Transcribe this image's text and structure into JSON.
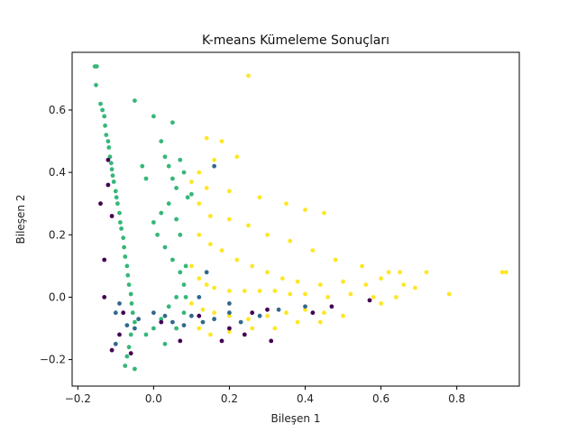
{
  "chart_data": {
    "type": "scatter",
    "title": "K-means Kümeleme Sonuçları",
    "xlabel": "Bileşen 1",
    "ylabel": "Bileşen 2",
    "xlim": [
      -0.215,
      0.965
    ],
    "ylim": [
      -0.285,
      0.785
    ],
    "xticks": [
      -0.2,
      0.0,
      0.2,
      0.4,
      0.6,
      0.8
    ],
    "yticks": [
      -0.2,
      0.0,
      0.2,
      0.4,
      0.6
    ],
    "grid": false,
    "legend": "none",
    "colors": {
      "cluster_green": "#35b779",
      "cluster_yellow": "#fde725",
      "cluster_purple": "#440154",
      "cluster_blue": "#31688e"
    },
    "series": [
      {
        "color_key": "cluster_green",
        "points": [
          [
            -0.15,
            0.74
          ],
          [
            -0.155,
            0.74
          ],
          [
            -0.152,
            0.68
          ],
          [
            -0.14,
            0.62
          ],
          [
            -0.135,
            0.6
          ],
          [
            -0.13,
            0.58
          ],
          [
            -0.128,
            0.55
          ],
          [
            -0.125,
            0.52
          ],
          [
            -0.12,
            0.5
          ],
          [
            -0.118,
            0.48
          ],
          [
            -0.115,
            0.45
          ],
          [
            -0.112,
            0.43
          ],
          [
            -0.11,
            0.41
          ],
          [
            -0.108,
            0.39
          ],
          [
            -0.105,
            0.37
          ],
          [
            -0.1,
            0.34
          ],
          [
            -0.098,
            0.32
          ],
          [
            -0.095,
            0.3
          ],
          [
            -0.09,
            0.27
          ],
          [
            -0.088,
            0.24
          ],
          [
            -0.085,
            0.22
          ],
          [
            -0.08,
            0.19
          ],
          [
            -0.078,
            0.16
          ],
          [
            -0.075,
            0.13
          ],
          [
            -0.07,
            0.1
          ],
          [
            -0.068,
            0.07
          ],
          [
            -0.065,
            0.04
          ],
          [
            -0.06,
            0.01
          ],
          [
            -0.058,
            -0.02
          ],
          [
            -0.055,
            -0.05
          ],
          [
            -0.05,
            -0.08
          ],
          [
            -0.06,
            -0.12
          ],
          [
            -0.065,
            -0.16
          ],
          [
            -0.07,
            -0.19
          ],
          [
            -0.075,
            -0.22
          ],
          [
            -0.05,
            -0.23
          ],
          [
            0.05,
            0.56
          ],
          [
            0.0,
            0.58
          ],
          [
            -0.05,
            0.63
          ],
          [
            0.02,
            0.5
          ],
          [
            0.03,
            0.45
          ],
          [
            0.04,
            0.42
          ],
          [
            0.05,
            0.38
          ],
          [
            0.06,
            0.35
          ],
          [
            0.04,
            0.3
          ],
          [
            0.02,
            0.27
          ],
          [
            0.0,
            0.24
          ],
          [
            0.01,
            0.2
          ],
          [
            0.03,
            0.16
          ],
          [
            0.05,
            0.12
          ],
          [
            0.07,
            0.08
          ],
          [
            0.08,
            0.04
          ],
          [
            0.06,
            0.0
          ],
          [
            0.04,
            -0.03
          ],
          [
            0.02,
            -0.07
          ],
          [
            0.0,
            -0.1
          ],
          [
            -0.02,
            -0.12
          ],
          [
            0.03,
            -0.15
          ],
          [
            0.06,
            -0.1
          ],
          [
            0.08,
            -0.05
          ],
          [
            0.085,
            0.0
          ],
          [
            0.085,
            0.1
          ],
          [
            0.07,
            0.2
          ],
          [
            0.06,
            0.25
          ],
          [
            -0.02,
            0.38
          ],
          [
            -0.03,
            0.42
          ],
          [
            0.07,
            0.44
          ],
          [
            0.08,
            0.4
          ],
          [
            0.09,
            0.32
          ],
          [
            0.1,
            0.33
          ]
        ]
      },
      {
        "color_key": "cluster_yellow",
        "points": [
          [
            0.25,
            0.71
          ],
          [
            0.14,
            0.51
          ],
          [
            0.18,
            0.5
          ],
          [
            0.22,
            0.45
          ],
          [
            0.16,
            0.44
          ],
          [
            0.12,
            0.4
          ],
          [
            0.1,
            0.37
          ],
          [
            0.14,
            0.35
          ],
          [
            0.2,
            0.34
          ],
          [
            0.28,
            0.32
          ],
          [
            0.35,
            0.3
          ],
          [
            0.4,
            0.28
          ],
          [
            0.45,
            0.27
          ],
          [
            0.12,
            0.3
          ],
          [
            0.15,
            0.26
          ],
          [
            0.2,
            0.25
          ],
          [
            0.25,
            0.23
          ],
          [
            0.3,
            0.2
          ],
          [
            0.36,
            0.18
          ],
          [
            0.42,
            0.15
          ],
          [
            0.48,
            0.12
          ],
          [
            0.55,
            0.1
          ],
          [
            0.62,
            0.08
          ],
          [
            0.65,
            0.08
          ],
          [
            0.72,
            0.08
          ],
          [
            0.12,
            0.2
          ],
          [
            0.15,
            0.17
          ],
          [
            0.18,
            0.15
          ],
          [
            0.22,
            0.12
          ],
          [
            0.26,
            0.1
          ],
          [
            0.3,
            0.08
          ],
          [
            0.34,
            0.06
          ],
          [
            0.38,
            0.05
          ],
          [
            0.44,
            0.04
          ],
          [
            0.5,
            0.05
          ],
          [
            0.56,
            0.04
          ],
          [
            0.6,
            0.06
          ],
          [
            0.66,
            0.04
          ],
          [
            0.69,
            0.03
          ],
          [
            0.1,
            0.1
          ],
          [
            0.12,
            0.06
          ],
          [
            0.14,
            0.04
          ],
          [
            0.16,
            0.03
          ],
          [
            0.2,
            0.02
          ],
          [
            0.24,
            0.02
          ],
          [
            0.28,
            0.02
          ],
          [
            0.32,
            0.02
          ],
          [
            0.36,
            0.01
          ],
          [
            0.4,
            0.01
          ],
          [
            0.46,
            0.0
          ],
          [
            0.52,
            0.01
          ],
          [
            0.58,
            0.0
          ],
          [
            0.64,
            0.0
          ],
          [
            0.1,
            -0.02
          ],
          [
            0.13,
            -0.04
          ],
          [
            0.16,
            -0.05
          ],
          [
            0.2,
            -0.06
          ],
          [
            0.25,
            -0.07
          ],
          [
            0.3,
            -0.06
          ],
          [
            0.35,
            -0.05
          ],
          [
            0.4,
            -0.04
          ],
          [
            0.45,
            -0.05
          ],
          [
            0.5,
            -0.06
          ],
          [
            0.12,
            -0.1
          ],
          [
            0.15,
            -0.12
          ],
          [
            0.2,
            -0.11
          ],
          [
            0.26,
            -0.1
          ],
          [
            0.32,
            -0.1
          ],
          [
            0.38,
            -0.08
          ],
          [
            0.44,
            -0.08
          ],
          [
            0.92,
            0.08
          ],
          [
            0.93,
            0.08
          ],
          [
            0.78,
            0.01
          ],
          [
            0.6,
            -0.02
          ]
        ]
      },
      {
        "color_key": "cluster_purple",
        "points": [
          [
            -0.12,
            0.44
          ],
          [
            -0.12,
            0.36
          ],
          [
            -0.11,
            0.26
          ],
          [
            -0.13,
            0.12
          ],
          [
            -0.08,
            -0.05
          ],
          [
            -0.09,
            -0.12
          ],
          [
            -0.11,
            -0.17
          ],
          [
            -0.06,
            -0.18
          ],
          [
            -0.13,
            0.0
          ],
          [
            0.02,
            -0.08
          ],
          [
            0.07,
            -0.14
          ],
          [
            0.12,
            -0.06
          ],
          [
            0.18,
            -0.14
          ],
          [
            0.2,
            -0.1
          ],
          [
            0.24,
            -0.12
          ],
          [
            0.26,
            -0.05
          ],
          [
            0.31,
            -0.14
          ],
          [
            0.3,
            -0.04
          ],
          [
            0.42,
            -0.05
          ],
          [
            0.47,
            -0.03
          ],
          [
            0.57,
            -0.01
          ],
          [
            -0.14,
            0.3
          ]
        ]
      },
      {
        "color_key": "cluster_blue",
        "points": [
          [
            -0.1,
            -0.05
          ],
          [
            -0.09,
            -0.02
          ],
          [
            -0.07,
            -0.09
          ],
          [
            -0.05,
            -0.1
          ],
          [
            -0.04,
            -0.07
          ],
          [
            0.0,
            -0.05
          ],
          [
            0.03,
            -0.06
          ],
          [
            0.05,
            -0.08
          ],
          [
            0.08,
            -0.09
          ],
          [
            0.1,
            -0.06
          ],
          [
            0.13,
            -0.08
          ],
          [
            0.16,
            -0.07
          ],
          [
            0.2,
            -0.05
          ],
          [
            0.23,
            -0.08
          ],
          [
            0.28,
            -0.06
          ],
          [
            0.33,
            -0.04
          ],
          [
            0.4,
            -0.03
          ],
          [
            0.16,
            0.42
          ],
          [
            0.14,
            0.08
          ],
          [
            0.12,
            0.0
          ],
          [
            -0.1,
            -0.15
          ],
          [
            0.2,
            -0.02
          ]
        ]
      }
    ]
  }
}
